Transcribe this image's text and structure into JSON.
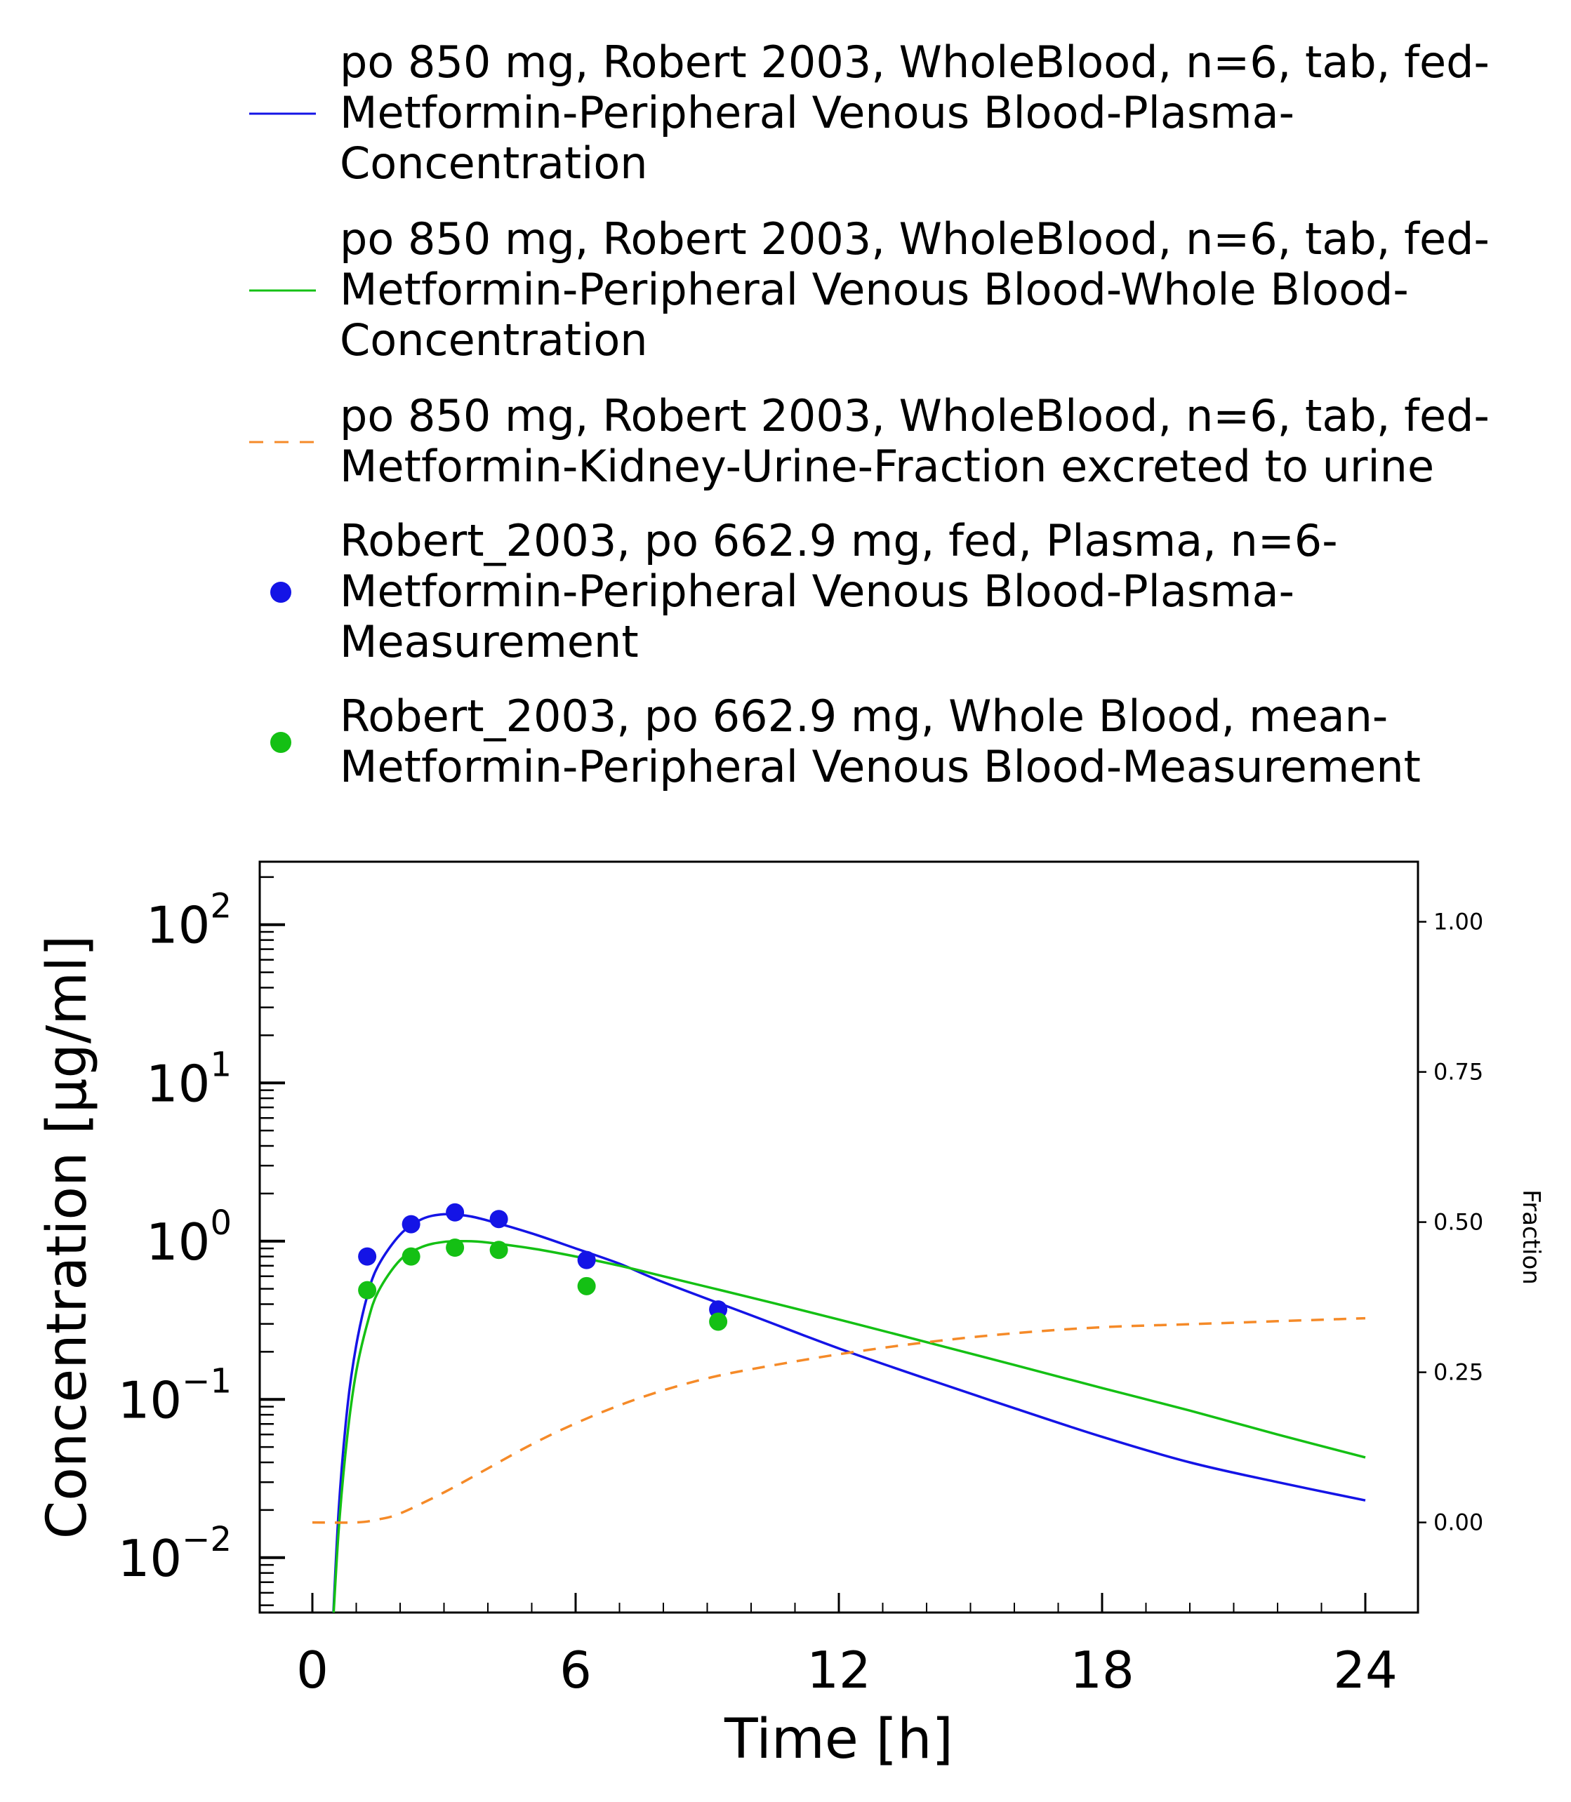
{
  "chart_data": {
    "type": "line",
    "xlabel": "Time [h]",
    "ylabel": "Concentration [µg/ml]",
    "y2label": "Fraction",
    "x_ticks": [
      0,
      6,
      12,
      18,
      24
    ],
    "xlim": [
      -1.2,
      25.2
    ],
    "y_scale": "log",
    "ylim": [
      0.0045,
      250
    ],
    "y_ticks": [
      {
        "base": "10",
        "exp": "2",
        "value": 100
      },
      {
        "base": "10",
        "exp": "1",
        "value": 10
      },
      {
        "base": "10",
        "exp": "0",
        "value": 1
      },
      {
        "base": "10",
        "exp": "−1",
        "value": 0.1
      },
      {
        "base": "10",
        "exp": "−2",
        "value": 0.01
      }
    ],
    "y2lim": [
      -0.15,
      1.1
    ],
    "y2_ticks": [
      "0.00",
      "0.25",
      "0.50",
      "0.75",
      "1.00"
    ],
    "grid": false,
    "legend_position": "top",
    "series": [
      {
        "name": "po 850 mg, Robert 2003, WholeBlood, n=6, tab, fed-Metformin-Peripheral Venous Blood-Plasma-Concentration",
        "legend_lines": [
          "po 850 mg, Robert 2003, WholeBlood, n=6, tab, fed-",
          "Metformin-Peripheral Venous Blood-Plasma-",
          "Concentration"
        ],
        "kind": "line",
        "color": "#1414e6",
        "dash": "solid",
        "axis": "left",
        "x": [
          0.45,
          0.6,
          0.8,
          1.0,
          1.25,
          1.5,
          2.0,
          2.5,
          3.0,
          3.5,
          4.0,
          5.0,
          6.0,
          7.0,
          8.0,
          10.0,
          12.0,
          14.0,
          16.0,
          18.0,
          20.0,
          22.0,
          24.0
        ],
        "y": [
          0.003,
          0.02,
          0.09,
          0.22,
          0.45,
          0.7,
          1.1,
          1.38,
          1.48,
          1.45,
          1.35,
          1.12,
          0.9,
          0.72,
          0.55,
          0.34,
          0.21,
          0.135,
          0.088,
          0.058,
          0.04,
          0.03,
          0.023
        ]
      },
      {
        "name": "po 850 mg, Robert 2003, WholeBlood, n=6, tab, fed-Metformin-Peripheral Venous Blood-Whole Blood-Concentration",
        "legend_lines": [
          "po 850 mg, Robert 2003, WholeBlood, n=6, tab, fed-",
          "Metformin-Peripheral Venous Blood-Whole Blood-",
          "Concentration"
        ],
        "kind": "line",
        "color": "#14c014",
        "dash": "solid",
        "axis": "left",
        "x": [
          0.45,
          0.6,
          0.8,
          1.0,
          1.25,
          1.5,
          2.0,
          2.5,
          3.0,
          3.5,
          4.0,
          5.0,
          6.0,
          7.0,
          8.0,
          10.0,
          12.0,
          14.0,
          16.0,
          18.0,
          20.0,
          22.0,
          24.0
        ],
        "y": [
          0.003,
          0.015,
          0.06,
          0.15,
          0.3,
          0.48,
          0.76,
          0.92,
          0.99,
          1.0,
          0.98,
          0.9,
          0.8,
          0.7,
          0.6,
          0.44,
          0.32,
          0.23,
          0.165,
          0.118,
          0.085,
          0.06,
          0.043
        ]
      },
      {
        "name": "po 850 mg, Robert 2003, WholeBlood, n=6, tab, fed-Metformin-Kidney-Urine-Fraction excreted to urine",
        "legend_lines": [
          "po 850 mg, Robert 2003, WholeBlood, n=6, tab, fed-",
          "Metformin-Kidney-Urine-Fraction excreted to urine"
        ],
        "kind": "line",
        "color": "#f58a28",
        "dash": "dashed",
        "axis": "right",
        "x": [
          0,
          1,
          1.5,
          2,
          3,
          4,
          5,
          6,
          7,
          8,
          9,
          10,
          12,
          14,
          16,
          18,
          20,
          22,
          24
        ],
        "y": [
          0.0,
          0.0,
          0.005,
          0.015,
          0.05,
          0.09,
          0.13,
          0.165,
          0.195,
          0.22,
          0.24,
          0.255,
          0.28,
          0.3,
          0.315,
          0.325,
          0.33,
          0.335,
          0.34
        ]
      },
      {
        "name": "Robert_2003, po 662.9 mg, fed, Plasma, n=6-Metformin-Peripheral Venous Blood-Plasma-Measurement",
        "legend_lines": [
          "Robert_2003, po 662.9 mg, fed, Plasma, n=6-",
          "Metformin-Peripheral Venous Blood-Plasma-",
          "Measurement"
        ],
        "kind": "scatter",
        "color": "#1414e6",
        "axis": "left",
        "x": [
          1.25,
          2.25,
          3.25,
          4.25,
          6.25,
          9.25
        ],
        "y": [
          0.8,
          1.28,
          1.52,
          1.38,
          0.76,
          0.37
        ]
      },
      {
        "name": "Robert_2003, po 662.9 mg, Whole Blood, mean-Metformin-Peripheral Venous Blood-Measurement",
        "legend_lines": [
          "Robert_2003, po 662.9 mg, Whole Blood, mean-",
          "Metformin-Peripheral Venous Blood-Measurement"
        ],
        "kind": "scatter",
        "color": "#14c014",
        "axis": "left",
        "x": [
          1.25,
          2.25,
          3.25,
          4.25,
          6.25,
          9.25
        ],
        "y": [
          0.49,
          0.8,
          0.91,
          0.88,
          0.52,
          0.31
        ]
      }
    ]
  }
}
